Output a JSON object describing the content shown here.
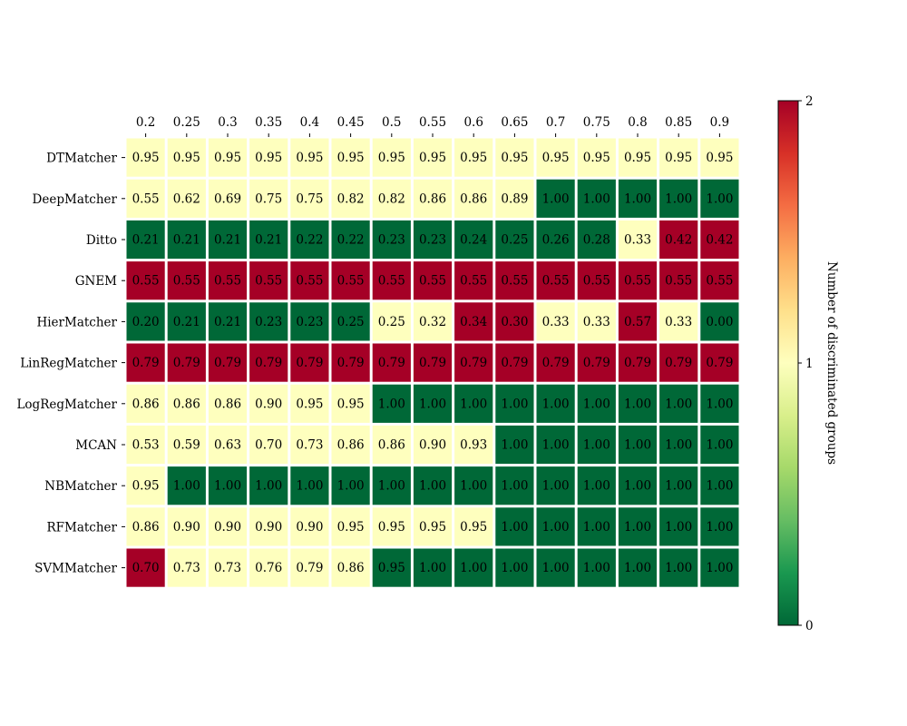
{
  "chart_data": {
    "type": "heatmap",
    "columns": [
      "0.2",
      "0.25",
      "0.3",
      "0.35",
      "0.4",
      "0.45",
      "0.5",
      "0.55",
      "0.6",
      "0.65",
      "0.7",
      "0.75",
      "0.8",
      "0.85",
      "0.9"
    ],
    "rows": [
      "DTMatcher",
      "DeepMatcher",
      "Ditto",
      "GNEM",
      "HierMatcher",
      "LinRegMatcher",
      "LogRegMatcher",
      "MCAN",
      "NBMatcher",
      "RFMatcher",
      "SVMMatcher"
    ],
    "cell_labels": [
      [
        "0.95",
        "0.95",
        "0.95",
        "0.95",
        "0.95",
        "0.95",
        "0.95",
        "0.95",
        "0.95",
        "0.95",
        "0.95",
        "0.95",
        "0.95",
        "0.95",
        "0.95"
      ],
      [
        "0.55",
        "0.62",
        "0.69",
        "0.75",
        "0.75",
        "0.82",
        "0.82",
        "0.86",
        "0.86",
        "0.89",
        "1.00",
        "1.00",
        "1.00",
        "1.00",
        "1.00"
      ],
      [
        "0.21",
        "0.21",
        "0.21",
        "0.21",
        "0.22",
        "0.22",
        "0.23",
        "0.23",
        "0.24",
        "0.25",
        "0.26",
        "0.28",
        "0.33",
        "0.42",
        "0.42"
      ],
      [
        "0.55",
        "0.55",
        "0.55",
        "0.55",
        "0.55",
        "0.55",
        "0.55",
        "0.55",
        "0.55",
        "0.55",
        "0.55",
        "0.55",
        "0.55",
        "0.55",
        "0.55"
      ],
      [
        "0.20",
        "0.21",
        "0.21",
        "0.23",
        "0.23",
        "0.25",
        "0.25",
        "0.32",
        "0.34",
        "0.30",
        "0.33",
        "0.33",
        "0.57",
        "0.33",
        "0.00"
      ],
      [
        "0.79",
        "0.79",
        "0.79",
        "0.79",
        "0.79",
        "0.79",
        "0.79",
        "0.79",
        "0.79",
        "0.79",
        "0.79",
        "0.79",
        "0.79",
        "0.79",
        "0.79"
      ],
      [
        "0.86",
        "0.86",
        "0.86",
        "0.90",
        "0.95",
        "0.95",
        "1.00",
        "1.00",
        "1.00",
        "1.00",
        "1.00",
        "1.00",
        "1.00",
        "1.00",
        "1.00"
      ],
      [
        "0.53",
        "0.59",
        "0.63",
        "0.70",
        "0.73",
        "0.86",
        "0.86",
        "0.90",
        "0.93",
        "1.00",
        "1.00",
        "1.00",
        "1.00",
        "1.00",
        "1.00"
      ],
      [
        "0.95",
        "1.00",
        "1.00",
        "1.00",
        "1.00",
        "1.00",
        "1.00",
        "1.00",
        "1.00",
        "1.00",
        "1.00",
        "1.00",
        "1.00",
        "1.00",
        "1.00"
      ],
      [
        "0.86",
        "0.90",
        "0.90",
        "0.90",
        "0.90",
        "0.95",
        "0.95",
        "0.95",
        "0.95",
        "1.00",
        "1.00",
        "1.00",
        "1.00",
        "1.00",
        "1.00"
      ],
      [
        "0.70",
        "0.73",
        "0.73",
        "0.76",
        "0.79",
        "0.86",
        "0.95",
        "1.00",
        "1.00",
        "1.00",
        "1.00",
        "1.00",
        "1.00",
        "1.00",
        "1.00"
      ]
    ],
    "color_values": [
      [
        1,
        1,
        1,
        1,
        1,
        1,
        1,
        1,
        1,
        1,
        1,
        1,
        1,
        1,
        1
      ],
      [
        1,
        1,
        1,
        1,
        1,
        1,
        1,
        1,
        1,
        1,
        0,
        0,
        0,
        0,
        0
      ],
      [
        0,
        0,
        0,
        0,
        0,
        0,
        0,
        0,
        0,
        0,
        0,
        0,
        1,
        2,
        2
      ],
      [
        2,
        2,
        2,
        2,
        2,
        2,
        2,
        2,
        2,
        2,
        2,
        2,
        2,
        2,
        2
      ],
      [
        0,
        0,
        0,
        0,
        0,
        0,
        1,
        1,
        2,
        2,
        1,
        1,
        2,
        1,
        0
      ],
      [
        2,
        2,
        2,
        2,
        2,
        2,
        2,
        2,
        2,
        2,
        2,
        2,
        2,
        2,
        2
      ],
      [
        1,
        1,
        1,
        1,
        1,
        1,
        0,
        0,
        0,
        0,
        0,
        0,
        0,
        0,
        0
      ],
      [
        1,
        1,
        1,
        1,
        1,
        1,
        1,
        1,
        1,
        0,
        0,
        0,
        0,
        0,
        0
      ],
      [
        1,
        0,
        0,
        0,
        0,
        0,
        0,
        0,
        0,
        0,
        0,
        0,
        0,
        0,
        0
      ],
      [
        1,
        1,
        1,
        1,
        1,
        1,
        1,
        1,
        1,
        0,
        0,
        0,
        0,
        0,
        0
      ],
      [
        2,
        1,
        1,
        1,
        1,
        1,
        0,
        0,
        0,
        0,
        0,
        0,
        0,
        0,
        0
      ]
    ],
    "colorbar": {
      "label": "Number of discriminated groups",
      "range": [
        0,
        2
      ],
      "ticks": [
        "0",
        "1",
        "2"
      ],
      "colors": {
        "0": "#006837",
        "1": "#feffbe",
        "2": "#a50026"
      },
      "gradient": [
        "#006837",
        "#1a9850",
        "#66bd63",
        "#a6d96a",
        "#d9ef8b",
        "#feffbe",
        "#fee08b",
        "#fdae61",
        "#f46d43",
        "#d73027",
        "#a50026"
      ]
    },
    "x_axis_position": "top"
  }
}
